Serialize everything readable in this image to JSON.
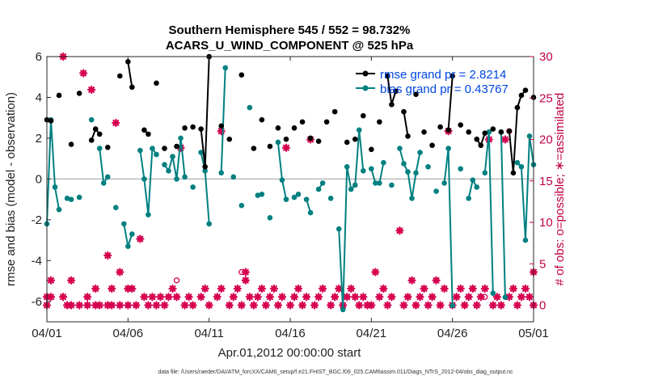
{
  "chart_data": {
    "type": "line",
    "title": "Southern Hemisphere 545 / 552 = 98.732%",
    "subtitle": "ACARS_U_WIND_COMPONENT @ 525 hPa",
    "xlabel": "Apr.01,2012 00:00:00 start",
    "ylabel_left": "rmse and bias (model - observation)",
    "ylabel_right": "# of obs: o=possible; ∗=assimilated",
    "footer": "data file: /Users/raeder/DAI/ATM_forcXX/CAM6_setup/f.e21.FHIST_BGC.f09_025.CAM6assim.011/Diags_NTrS_2012-04/obs_diag_output.nc",
    "xlim": [
      0,
      30
    ],
    "ylim_left": [
      -7,
      6
    ],
    "ylim_right": [
      -2,
      30
    ],
    "x_ticks": [
      0,
      5,
      10,
      15,
      20,
      25,
      30
    ],
    "x_tick_labels": [
      "04/01",
      "04/06",
      "04/11",
      "04/16",
      "04/21",
      "04/26",
      "05/01"
    ],
    "y_left_ticks": [
      -6,
      -4,
      -2,
      0,
      2,
      4,
      6
    ],
    "y_right_ticks": [
      0,
      5,
      10,
      15,
      20,
      25,
      30
    ],
    "grid": false,
    "legend_position": "top-right",
    "colors": {
      "rmse": "#000000",
      "bias": "#008080",
      "obs": "#d6004f",
      "zero_line": "#b0b0b0",
      "right_axis": "#c0004a",
      "legend_text": "#0046e0"
    },
    "series": [
      {
        "name": "rmse grand pr = 2.8214",
        "axis": "left",
        "points": [
          [
            0.0,
            2.9
          ],
          [
            0.25,
            2.85
          ],
          [
            0.75,
            4.1
          ],
          [
            1.5,
            1.7
          ],
          [
            2.0,
            4.2
          ],
          [
            2.75,
            1.9
          ],
          [
            3.0,
            2.45
          ],
          [
            3.25,
            2.2
          ],
          [
            3.75,
            1.55
          ],
          [
            4.5,
            5.05
          ],
          [
            5.0,
            5.75
          ],
          [
            5.25,
            4.5
          ],
          [
            6.0,
            2.4
          ],
          [
            6.25,
            2.2
          ],
          [
            6.75,
            4.7
          ],
          [
            7.25,
            1.5
          ],
          [
            8.0,
            1.6
          ],
          [
            8.5,
            2.5
          ],
          [
            9.0,
            2.55
          ],
          [
            9.5,
            2.45
          ],
          [
            9.75,
            0.6
          ],
          [
            10.0,
            6.0
          ],
          [
            10.75,
            2.6
          ],
          [
            11.25,
            1.95
          ],
          [
            12.0,
            5.1
          ],
          [
            12.75,
            1.5
          ],
          [
            13.25,
            2.9
          ],
          [
            13.75,
            1.6
          ],
          [
            14.25,
            2.5
          ],
          [
            14.75,
            1.95
          ],
          [
            15.25,
            2.5
          ],
          [
            15.75,
            2.8
          ],
          [
            16.25,
            2.0
          ],
          [
            16.75,
            1.85
          ],
          [
            17.25,
            2.8
          ],
          [
            17.75,
            3.3
          ],
          [
            18.5,
            1.8
          ],
          [
            19.0,
            1.95
          ],
          [
            19.5,
            3.1
          ],
          [
            20.0,
            1.45
          ],
          [
            20.5,
            2.8
          ],
          [
            21.0,
            5.05
          ],
          [
            21.25,
            3.65
          ],
          [
            21.5,
            4.3
          ],
          [
            22.0,
            3.3
          ],
          [
            22.25,
            2.1
          ],
          [
            22.75,
            4.15
          ],
          [
            23.25,
            2.3
          ],
          [
            23.75,
            1.65
          ],
          [
            24.25,
            2.55
          ],
          [
            24.75,
            2.4
          ],
          [
            25.0,
            5.05
          ],
          [
            25.5,
            2.65
          ],
          [
            26.0,
            2.3
          ],
          [
            26.5,
            1.95
          ],
          [
            26.75,
            1.65
          ],
          [
            27.0,
            2.25
          ],
          [
            27.5,
            2.45
          ],
          [
            28.0,
            2.3
          ],
          [
            28.5,
            2.35
          ],
          [
            28.75,
            0.3
          ],
          [
            29.0,
            3.5
          ],
          [
            29.25,
            4.1
          ],
          [
            29.5,
            4.35
          ],
          [
            30.0,
            4.0
          ]
        ]
      },
      {
        "name": "bias grand pr = 0.43767",
        "axis": "left",
        "points": [
          [
            0.0,
            -2.2
          ],
          [
            0.25,
            2.9
          ],
          [
            0.5,
            -0.4
          ],
          [
            0.75,
            -1.5
          ],
          [
            1.25,
            -0.95
          ],
          [
            1.5,
            -1.0
          ],
          [
            2.0,
            -0.9
          ],
          [
            2.75,
            2.9
          ],
          [
            3.25,
            1.5
          ],
          [
            3.5,
            -0.2
          ],
          [
            3.75,
            0.1
          ],
          [
            4.25,
            -1.4
          ],
          [
            4.75,
            -2.2
          ],
          [
            5.0,
            -3.3
          ],
          [
            5.25,
            -2.7
          ],
          [
            5.75,
            1.4
          ],
          [
            6.0,
            0.0
          ],
          [
            6.25,
            -1.75
          ],
          [
            6.5,
            1.5
          ],
          [
            6.75,
            1.2
          ],
          [
            7.25,
            0.7
          ],
          [
            7.5,
            0.4
          ],
          [
            7.75,
            1.1
          ],
          [
            8.0,
            0.0
          ],
          [
            8.25,
            2.0
          ],
          [
            8.5,
            0.1
          ],
          [
            9.0,
            -0.4
          ],
          [
            9.5,
            1.3
          ],
          [
            9.75,
            0.4
          ],
          [
            10.0,
            -2.2
          ],
          [
            10.75,
            0.3
          ],
          [
            11.0,
            5.45
          ],
          [
            11.5,
            0.1
          ],
          [
            12.0,
            -1.3
          ],
          [
            12.5,
            3.5
          ],
          [
            13.0,
            -0.8
          ],
          [
            13.25,
            -0.75
          ],
          [
            13.75,
            -1.9
          ],
          [
            14.25,
            1.8
          ],
          [
            14.5,
            -0.05
          ],
          [
            14.75,
            -1.0
          ],
          [
            15.25,
            -0.9
          ],
          [
            15.5,
            -0.75
          ],
          [
            16.0,
            -1.0
          ],
          [
            16.25,
            -1.65
          ],
          [
            16.75,
            -0.5
          ],
          [
            17.0,
            -0.2
          ],
          [
            17.5,
            -0.95
          ],
          [
            18.0,
            -2.45
          ],
          [
            18.25,
            -6.4
          ],
          [
            18.5,
            0.6
          ],
          [
            18.75,
            -0.5
          ],
          [
            19.0,
            -0.3
          ],
          [
            19.25,
            2.4
          ],
          [
            19.5,
            0.4
          ],
          [
            20.0,
            0.5
          ],
          [
            20.25,
            -0.2
          ],
          [
            20.5,
            -0.2
          ],
          [
            20.75,
            0.8
          ],
          [
            21.25,
            -0.3
          ],
          [
            21.75,
            1.5
          ],
          [
            22.0,
            0.75
          ],
          [
            22.25,
            0.35
          ],
          [
            22.5,
            -0.95
          ],
          [
            22.75,
            0.3
          ],
          [
            23.0,
            1.3
          ],
          [
            23.5,
            0.6
          ],
          [
            24.0,
            -0.6
          ],
          [
            24.5,
            -0.2
          ],
          [
            24.75,
            1.5
          ],
          [
            25.0,
            -6.2
          ],
          [
            25.5,
            0.5
          ],
          [
            26.0,
            -0.95
          ],
          [
            26.25,
            -0.05
          ],
          [
            26.5,
            -0.4
          ],
          [
            27.0,
            0.3
          ],
          [
            27.25,
            2.3
          ],
          [
            27.5,
            -5.6
          ],
          [
            28.0,
            2.3
          ],
          [
            28.25,
            -5.8
          ],
          [
            29.0,
            0.8
          ],
          [
            29.25,
            0.6
          ],
          [
            29.5,
            -3.0
          ],
          [
            29.75,
            2.1
          ],
          [
            30.0,
            0.7
          ]
        ]
      },
      {
        "name": "obs assimilated",
        "axis": "right",
        "marker": "asterisk",
        "points": [
          [
            0.0,
            1.0
          ],
          [
            0.0,
            0.0
          ],
          [
            0.25,
            1.0
          ],
          [
            0.25,
            3.0
          ],
          [
            1.0,
            1.0
          ],
          [
            1.0,
            30.0
          ],
          [
            1.25,
            0.0
          ],
          [
            1.5,
            0.0
          ],
          [
            1.5,
            3.0
          ],
          [
            2.0,
            0.0
          ],
          [
            2.25,
            28.0
          ],
          [
            2.5,
            0.0
          ],
          [
            2.5,
            1.0
          ],
          [
            2.75,
            26.0
          ],
          [
            3.0,
            0.0
          ],
          [
            3.0,
            2.0
          ],
          [
            3.25,
            0.0
          ],
          [
            3.75,
            0.0
          ],
          [
            3.75,
            6.0
          ],
          [
            4.0,
            0.0
          ],
          [
            4.0,
            2.0
          ],
          [
            4.25,
            22.0
          ],
          [
            4.5,
            0.0
          ],
          [
            4.5,
            4.0
          ],
          [
            5.0,
            0.0
          ],
          [
            5.0,
            2.0
          ],
          [
            5.25,
            2.0
          ],
          [
            5.5,
            0.0
          ],
          [
            5.75,
            8.0
          ],
          [
            6.0,
            1.0
          ],
          [
            6.25,
            0.0
          ],
          [
            6.5,
            1.0
          ],
          [
            6.75,
            0.0
          ],
          [
            7.0,
            1.0
          ],
          [
            7.25,
            0.0
          ],
          [
            7.5,
            1.0
          ],
          [
            7.75,
            2.0
          ],
          [
            8.0,
            1.0
          ],
          [
            8.25,
            19.0
          ],
          [
            8.5,
            0.0
          ],
          [
            8.75,
            1.0
          ],
          [
            9.0,
            0.0
          ],
          [
            9.5,
            1.0
          ],
          [
            9.75,
            2.0
          ],
          [
            10.0,
            0.0
          ],
          [
            10.5,
            1.0
          ],
          [
            10.75,
            21.0
          ],
          [
            10.75,
            2.0
          ],
          [
            11.25,
            0.0
          ],
          [
            11.5,
            1.0
          ],
          [
            11.75,
            2.0
          ],
          [
            12.0,
            0.0
          ],
          [
            12.25,
            3.0
          ],
          [
            12.25,
            4.0
          ],
          [
            12.5,
            1.0
          ],
          [
            12.75,
            0.0
          ],
          [
            13.0,
            1.0
          ],
          [
            13.25,
            2.0
          ],
          [
            13.5,
            0.0
          ],
          [
            13.75,
            1.0
          ],
          [
            14.0,
            2.0
          ],
          [
            14.25,
            0.0
          ],
          [
            14.5,
            1.0
          ],
          [
            14.75,
            19.0
          ],
          [
            15.0,
            0.0
          ],
          [
            15.25,
            1.0
          ],
          [
            15.5,
            2.0
          ],
          [
            15.75,
            0.0
          ],
          [
            16.0,
            1.0
          ],
          [
            16.25,
            20.0
          ],
          [
            16.5,
            0.0
          ],
          [
            16.75,
            1.0
          ],
          [
            17.0,
            2.0
          ],
          [
            17.5,
            0.0
          ],
          [
            17.75,
            1.0
          ],
          [
            18.0,
            2.0
          ],
          [
            18.25,
            0.0
          ],
          [
            18.5,
            1.0
          ],
          [
            18.75,
            2.0
          ],
          [
            19.0,
            1.0
          ],
          [
            19.25,
            0.0
          ],
          [
            19.5,
            1.0
          ],
          [
            19.75,
            0.0
          ],
          [
            20.0,
            0.0
          ],
          [
            20.25,
            4.0
          ],
          [
            20.5,
            1.0
          ],
          [
            20.75,
            2.0
          ],
          [
            21.0,
            0.0
          ],
          [
            21.25,
            1.0
          ],
          [
            21.75,
            9.0
          ],
          [
            22.0,
            0.0
          ],
          [
            22.25,
            1.0
          ],
          [
            22.5,
            3.0
          ],
          [
            22.75,
            0.0
          ],
          [
            23.0,
            1.0
          ],
          [
            23.25,
            2.0
          ],
          [
            23.5,
            0.0
          ],
          [
            23.75,
            1.0
          ],
          [
            24.0,
            3.0
          ],
          [
            24.25,
            0.0
          ],
          [
            24.5,
            2.0
          ],
          [
            24.75,
            21.0
          ],
          [
            25.0,
            0.0
          ],
          [
            25.25,
            1.0
          ],
          [
            25.5,
            2.0
          ],
          [
            25.75,
            0.0
          ],
          [
            26.0,
            1.0
          ],
          [
            26.25,
            2.0
          ],
          [
            26.5,
            0.0
          ],
          [
            26.75,
            1.0
          ],
          [
            27.0,
            2.0
          ],
          [
            27.25,
            20.0
          ],
          [
            27.5,
            0.0
          ],
          [
            27.75,
            1.0
          ],
          [
            28.0,
            0.0
          ],
          [
            28.25,
            20.0
          ],
          [
            28.5,
            1.0
          ],
          [
            28.75,
            2.0
          ],
          [
            29.0,
            0.0
          ],
          [
            29.25,
            1.0
          ],
          [
            29.5,
            2.0
          ],
          [
            29.75,
            1.0
          ],
          [
            30.0,
            0.0
          ],
          [
            30.0,
            4.0
          ]
        ]
      },
      {
        "name": "obs possible",
        "axis": "right",
        "marker": "circle",
        "points": [
          [
            12.0,
            4.0
          ],
          [
            8.0,
            3.0
          ],
          [
            27.0,
            1.0
          ],
          [
            28.5,
            21.0
          ]
        ]
      }
    ]
  }
}
